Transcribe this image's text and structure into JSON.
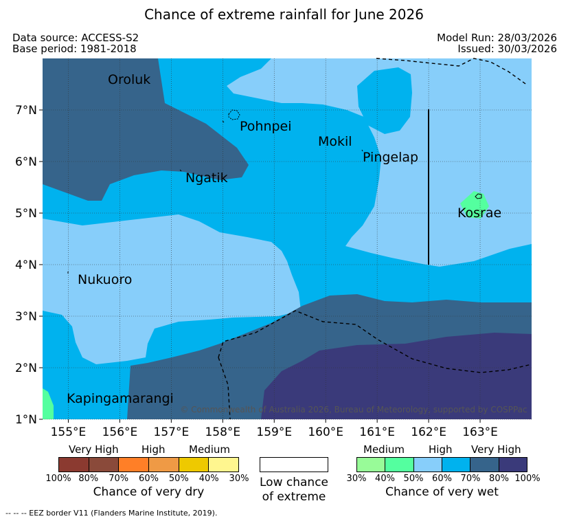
{
  "title": "Chance of extreme rainfall for June 2026",
  "header": {
    "data_source": "Data source: ACCESS-S2",
    "base_period": "Base period: 1981-2018",
    "model_run": "Model Run: 28/03/2026",
    "issued": "Issued: 30/03/2026"
  },
  "map": {
    "lon_range": [
      154.5,
      164.0
    ],
    "lat_range": [
      1.0,
      8.0
    ],
    "x_ticks": [
      "155°E",
      "156°E",
      "157°E",
      "158°E",
      "159°E",
      "160°E",
      "161°E",
      "162°E",
      "163°E"
    ],
    "y_ticks": [
      "7°N",
      "6°N",
      "5°N",
      "4°N",
      "3°N",
      "2°N",
      "1°N"
    ],
    "places": {
      "oroluk": "Oroluk",
      "pohnpei": "Pohnpei",
      "mokil": "Mokil",
      "pingelap": "Pingelap",
      "ngatik": "Ngatik",
      "kosrae": "Kosrae",
      "nukuoro": "Nukuoro",
      "kapingamarangi": "Kapingamarangi"
    },
    "copyright": "© Commonwealth of Australia 2026, Bureau of Meteorology, supported by COSPPac"
  },
  "legend": {
    "dry": {
      "headings": [
        "Very High",
        "High",
        "Medium"
      ],
      "colors": [
        "#8b3a30",
        "#8a4a3a",
        "#ff7f27",
        "#ef9a45",
        "#eec900",
        "#fff68f"
      ],
      "ticks": [
        "100%",
        "80%",
        "70%",
        "60%",
        "50%",
        "40%",
        "30%"
      ],
      "caption": "Chance of very dry"
    },
    "low": {
      "line1": "Low chance",
      "line2": "of extreme"
    },
    "wet": {
      "headings": [
        "Medium",
        "High",
        "Very High"
      ],
      "colors": [
        "#98fb98",
        "#54ff9f",
        "#87cefa",
        "#00b2ee",
        "#36648b",
        "#3a3a7a"
      ],
      "ticks": [
        "30%",
        "40%",
        "50%",
        "60%",
        "70%",
        "80%",
        "100%"
      ],
      "caption": "Chance of very wet"
    },
    "eez_note": "--  --  -- EEZ border V11 (Flanders Marine Institute, 2019)."
  }
}
